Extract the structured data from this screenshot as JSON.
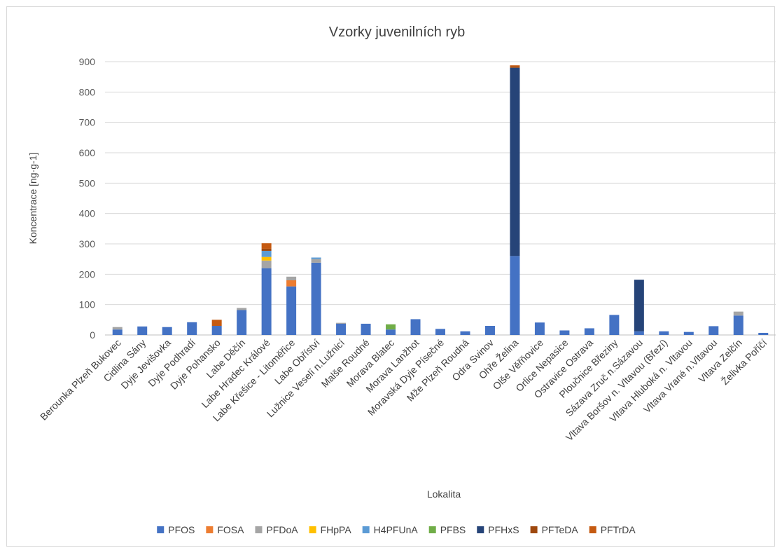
{
  "chart_data": {
    "type": "bar",
    "stacked": true,
    "title": "Vzorky juvenilních ryb",
    "xlabel": "Lokalita",
    "ylabel": "Koncentrace [ng·g-1]",
    "ylim": [
      0,
      900
    ],
    "yticks": [
      0,
      100,
      200,
      300,
      400,
      500,
      600,
      700,
      800,
      900
    ],
    "grid": true,
    "legend_position": "bottom",
    "categories": [
      "Berounka Plzeň Bukovec",
      "Cidlina Sány",
      "Dyje Jevišovka",
      "Dyje Podhradí",
      "Dyje Pohansko",
      "Labe Děčín",
      "Labe Hradec Králové",
      "Labe Křešice - Litoměřice",
      "Labe Obříství",
      "Lužnice Veselí n.Lužnicí",
      "Malše Roudné",
      "Morava Blatec",
      "Morava Lanžhot",
      "Moravská Dyje Písečné",
      "Mže Plzeň Roudná",
      "Odra Svinov",
      "Ohře Želina",
      "Olše Věřňovice",
      "Orlice Nepasice",
      "Ostravice Ostrava",
      "Ploučnice Březiny",
      "Sázava Zruč n.Sázavou",
      "Vltava Boršov n. Vltavou (Březí)",
      "Vltava Hluboká n. Vltavou",
      "Vltava Vrané n.Vltavou",
      "Vltava Zelčín",
      "Želivka Poříčí"
    ],
    "series": [
      {
        "name": "PFOS",
        "color": "#4472c4",
        "values": [
          18,
          28,
          26,
          42,
          30,
          82,
          220,
          160,
          238,
          37,
          37,
          18,
          52,
          20,
          12,
          30,
          260,
          41,
          15,
          22,
          66,
          12,
          12,
          10,
          29,
          64,
          7
        ]
      },
      {
        "name": "FOSA",
        "color": "#ed7d31",
        "values": [
          0,
          0,
          0,
          0,
          0,
          0,
          0,
          20,
          0,
          0,
          0,
          0,
          0,
          0,
          0,
          0,
          0,
          0,
          0,
          0,
          0,
          0,
          0,
          0,
          0,
          0,
          0
        ]
      },
      {
        "name": "PFDoA",
        "color": "#a5a5a5",
        "values": [
          8,
          0,
          0,
          0,
          0,
          7,
          25,
          12,
          12,
          3,
          0,
          0,
          0,
          0,
          0,
          0,
          0,
          0,
          0,
          0,
          0,
          0,
          0,
          0,
          0,
          13,
          0
        ]
      },
      {
        "name": "FHpPA",
        "color": "#ffc000",
        "values": [
          0,
          0,
          0,
          0,
          0,
          0,
          12,
          0,
          0,
          0,
          0,
          0,
          0,
          0,
          0,
          0,
          0,
          0,
          0,
          0,
          0,
          0,
          0,
          0,
          0,
          0,
          0
        ]
      },
      {
        "name": "H4PFUnA",
        "color": "#5b9bd5",
        "values": [
          0,
          0,
          0,
          0,
          0,
          0,
          20,
          0,
          5,
          0,
          0,
          0,
          0,
          0,
          0,
          0,
          0,
          0,
          0,
          0,
          0,
          0,
          0,
          0,
          0,
          0,
          0
        ]
      },
      {
        "name": "PFBS",
        "color": "#70ad47",
        "values": [
          0,
          0,
          0,
          0,
          0,
          0,
          0,
          0,
          0,
          0,
          0,
          17,
          0,
          0,
          0,
          0,
          0,
          0,
          0,
          0,
          0,
          0,
          0,
          0,
          0,
          0,
          0
        ]
      },
      {
        "name": "PFHxS",
        "color": "#264478",
        "values": [
          0,
          0,
          0,
          0,
          0,
          0,
          0,
          0,
          0,
          0,
          0,
          0,
          0,
          0,
          0,
          0,
          620,
          0,
          0,
          0,
          0,
          170,
          0,
          0,
          0,
          0,
          0
        ]
      },
      {
        "name": "PFTeDA",
        "color": "#9e480e",
        "values": [
          0,
          0,
          0,
          0,
          0,
          0,
          7,
          0,
          0,
          0,
          0,
          0,
          0,
          0,
          0,
          0,
          4,
          0,
          0,
          0,
          0,
          0,
          0,
          0,
          0,
          0,
          0
        ]
      },
      {
        "name": "PFTrDA",
        "color": "#c55a11",
        "values": [
          0,
          0,
          0,
          0,
          20,
          0,
          18,
          0,
          0,
          0,
          0,
          0,
          0,
          0,
          0,
          0,
          4,
          0,
          0,
          0,
          0,
          0,
          0,
          0,
          0,
          0,
          0
        ]
      }
    ]
  }
}
